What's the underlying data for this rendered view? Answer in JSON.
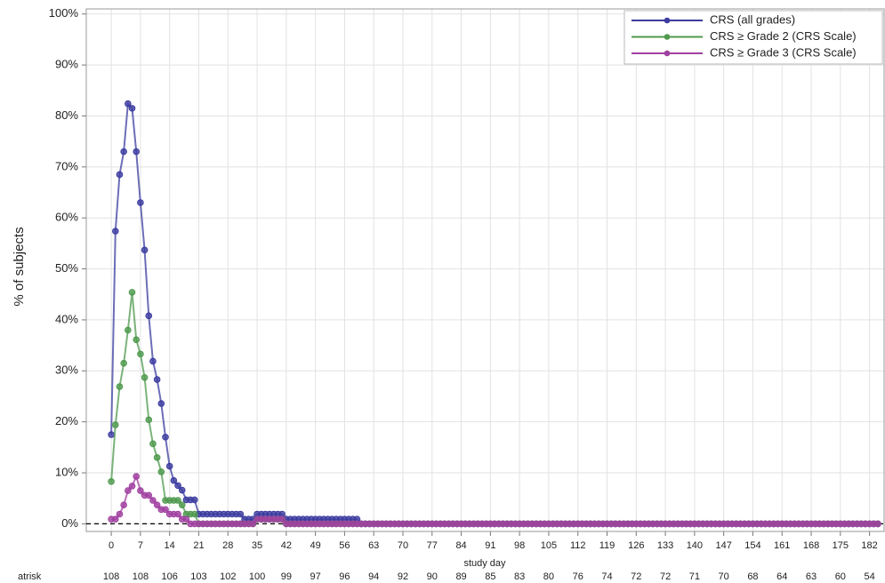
{
  "chart_data": {
    "type": "line",
    "y_label": "% of subjects",
    "x_label": "study day",
    "xlim": [
      -6,
      185.5
    ],
    "ylim": [
      -1.5,
      101
    ],
    "xticks": [
      0,
      7,
      14,
      21,
      28,
      35,
      42,
      49,
      56,
      63,
      70,
      77,
      84,
      91,
      98,
      105,
      112,
      119,
      126,
      133,
      140,
      147,
      154,
      161,
      168,
      175,
      182
    ],
    "yticks": [
      {
        "value": 0,
        "label": "0%"
      },
      {
        "value": 10,
        "label": "10%"
      },
      {
        "value": 20,
        "label": "20%"
      },
      {
        "value": 30,
        "label": "30%"
      },
      {
        "value": 40,
        "label": "40%"
      },
      {
        "value": 50,
        "label": "50%"
      },
      {
        "value": 60,
        "label": "60%"
      },
      {
        "value": 70,
        "label": "70%"
      },
      {
        "value": 80,
        "label": "80%"
      },
      {
        "value": 90,
        "label": "90%"
      },
      {
        "value": 100,
        "label": "100%"
      }
    ],
    "grid": true,
    "reference_line": 0,
    "legend": "top-right",
    "x": [
      0,
      1,
      2,
      3,
      4,
      5,
      6,
      7,
      8,
      9,
      10,
      11,
      12,
      13,
      14,
      15,
      16,
      17,
      18,
      19,
      20,
      21,
      22,
      23,
      24,
      25,
      26,
      27,
      28,
      29,
      30,
      31,
      32,
      33,
      34,
      35,
      36,
      37,
      38,
      39,
      40,
      41,
      42,
      43,
      44,
      45,
      46,
      47,
      48,
      49,
      50,
      51,
      52,
      53,
      54,
      55,
      56,
      57,
      58,
      59,
      60,
      61,
      62,
      63,
      64,
      65,
      66,
      67,
      68,
      69,
      70,
      71,
      72,
      73,
      74,
      75,
      76,
      77,
      78,
      79,
      80,
      81,
      82,
      83,
      84,
      85,
      86,
      87,
      88,
      89,
      90,
      91,
      92,
      93,
      94,
      95,
      96,
      97,
      98,
      99,
      100,
      101,
      102,
      103,
      104,
      105,
      106,
      107,
      108,
      109,
      110,
      111,
      112,
      113,
      114,
      115,
      116,
      117,
      118,
      119,
      120,
      121,
      122,
      123,
      124,
      125,
      126,
      127,
      128,
      129,
      130,
      131,
      132,
      133,
      134,
      135,
      136,
      137,
      138,
      139,
      140,
      141,
      142,
      143,
      144,
      145,
      146,
      147,
      148,
      149,
      150,
      151,
      152,
      153,
      154,
      155,
      156,
      157,
      158,
      159,
      160,
      161,
      162,
      163,
      164,
      165,
      166,
      167,
      168,
      169,
      170,
      171,
      172,
      173,
      174,
      175,
      176,
      177,
      178,
      179,
      180,
      181,
      182,
      183,
      184
    ],
    "series": [
      {
        "name": "CRS (all grades)",
        "color": "#3c3ca0",
        "values": [
          17.5,
          57.4,
          68.5,
          73,
          82.4,
          81.5,
          73,
          63,
          53.7,
          40.8,
          31.9,
          28.3,
          23.6,
          17,
          11.3,
          8.5,
          7.5,
          6.6,
          4.7,
          4.7,
          4.7,
          1.9,
          1.9,
          1.9,
          1.9,
          1.9,
          1.9,
          1.9,
          1.9,
          1.9,
          1.9,
          1.9,
          0.9,
          0.9,
          0.9,
          1.9,
          1.9,
          1.9,
          1.9,
          1.9,
          1.9,
          1.9,
          0.9,
          0.9,
          0.9,
          0.9,
          0.9,
          0.9,
          0.9,
          0.9,
          0.9,
          0.9,
          0.9,
          0.9,
          0.9,
          0.9,
          0.9,
          0.9,
          0.9,
          0.9,
          0,
          0,
          0,
          0,
          0,
          0,
          0,
          0,
          0,
          0,
          0,
          0,
          0,
          0,
          0,
          0,
          0,
          0,
          0,
          0,
          0,
          0,
          0,
          0,
          0,
          0,
          0,
          0,
          0,
          0,
          0,
          0,
          0,
          0,
          0,
          0,
          0,
          0,
          0,
          0,
          0,
          0,
          0,
          0,
          0,
          0,
          0,
          0,
          0,
          0,
          0,
          0,
          0,
          0,
          0,
          0,
          0,
          0,
          0,
          0,
          0,
          0,
          0,
          0,
          0,
          0,
          0,
          0,
          0,
          0,
          0,
          0,
          0,
          0,
          0,
          0,
          0,
          0,
          0,
          0,
          0,
          0,
          0,
          0,
          0,
          0,
          0,
          0,
          0,
          0,
          0,
          0,
          0,
          0,
          0,
          0,
          0,
          0,
          0,
          0,
          0,
          0,
          0,
          0,
          0,
          0,
          0,
          0,
          0,
          0,
          0,
          0,
          0,
          0,
          0,
          0,
          0,
          0,
          0,
          0,
          0,
          0,
          0,
          0,
          0
        ]
      },
      {
        "name": "CRS ≥ Grade 2 (CRS Scale)",
        "color": "#4f9a4f",
        "values": [
          8.3,
          19.4,
          26.9,
          31.5,
          38,
          45.4,
          36.1,
          33.3,
          28.7,
          20.4,
          15.7,
          13,
          10.2,
          4.6,
          4.6,
          4.6,
          4.6,
          3.7,
          1.9,
          1.9,
          1.9,
          0,
          0,
          0,
          0,
          0,
          0,
          0,
          0,
          0,
          0,
          0,
          0,
          0,
          0,
          0.9,
          0.9,
          0.9,
          0.9,
          0.9,
          0.9,
          0.9,
          0,
          0,
          0,
          0,
          0,
          0,
          0,
          0,
          0,
          0,
          0,
          0,
          0,
          0,
          0,
          0,
          0,
          0,
          0,
          0,
          0,
          0,
          0,
          0,
          0,
          0,
          0,
          0,
          0,
          0,
          0,
          0,
          0,
          0,
          0,
          0,
          0,
          0,
          0,
          0,
          0,
          0,
          0,
          0,
          0,
          0,
          0,
          0,
          0,
          0,
          0,
          0,
          0,
          0,
          0,
          0,
          0,
          0,
          0,
          0,
          0,
          0,
          0,
          0,
          0,
          0,
          0,
          0,
          0,
          0,
          0,
          0,
          0,
          0,
          0,
          0,
          0,
          0,
          0,
          0,
          0,
          0,
          0,
          0,
          0,
          0,
          0,
          0,
          0,
          0,
          0,
          0,
          0,
          0,
          0,
          0,
          0,
          0,
          0,
          0,
          0,
          0,
          0,
          0,
          0,
          0,
          0,
          0,
          0,
          0,
          0,
          0,
          0,
          0,
          0,
          0,
          0,
          0,
          0,
          0,
          0,
          0,
          0,
          0,
          0,
          0,
          0,
          0,
          0,
          0,
          0,
          0,
          0,
          0,
          0,
          0,
          0,
          0,
          0,
          0,
          0,
          0,
          0
        ]
      },
      {
        "name": "CRS ≥ Grade 3 (CRS Scale)",
        "color": "#a040a0",
        "values": [
          0.9,
          0.9,
          1.9,
          3.7,
          6.5,
          7.4,
          9.3,
          6.5,
          5.6,
          5.6,
          4.6,
          3.7,
          2.8,
          2.8,
          1.9,
          1.9,
          1.9,
          0.9,
          0.9,
          0,
          0,
          0,
          0,
          0,
          0,
          0,
          0,
          0,
          0,
          0,
          0,
          0,
          0,
          0,
          0,
          0.9,
          0.9,
          0.9,
          0.9,
          0.9,
          0.9,
          0.9,
          0,
          0,
          0,
          0,
          0,
          0,
          0,
          0,
          0,
          0,
          0,
          0,
          0,
          0,
          0,
          0,
          0,
          0,
          0,
          0,
          0,
          0,
          0,
          0,
          0,
          0,
          0,
          0,
          0,
          0,
          0,
          0,
          0,
          0,
          0,
          0,
          0,
          0,
          0,
          0,
          0,
          0,
          0,
          0,
          0,
          0,
          0,
          0,
          0,
          0,
          0,
          0,
          0,
          0,
          0,
          0,
          0,
          0,
          0,
          0,
          0,
          0,
          0,
          0,
          0,
          0,
          0,
          0,
          0,
          0,
          0,
          0,
          0,
          0,
          0,
          0,
          0,
          0,
          0,
          0,
          0,
          0,
          0,
          0,
          0,
          0,
          0,
          0,
          0,
          0,
          0,
          0,
          0,
          0,
          0,
          0,
          0,
          0,
          0,
          0,
          0,
          0,
          0,
          0,
          0,
          0,
          0,
          0,
          0,
          0,
          0,
          0,
          0,
          0,
          0,
          0,
          0,
          0,
          0,
          0,
          0,
          0,
          0,
          0,
          0,
          0,
          0,
          0,
          0,
          0,
          0,
          0,
          0,
          0,
          0,
          0,
          0,
          0,
          0,
          0,
          0,
          0,
          0
        ]
      }
    ],
    "at_risk": {
      "label": "atrisk",
      "values": [
        108,
        108,
        106,
        103,
        102,
        100,
        99,
        97,
        96,
        94,
        92,
        90,
        89,
        85,
        83,
        80,
        76,
        74,
        72,
        72,
        71,
        70,
        68,
        64,
        63,
        60,
        54
      ]
    }
  }
}
